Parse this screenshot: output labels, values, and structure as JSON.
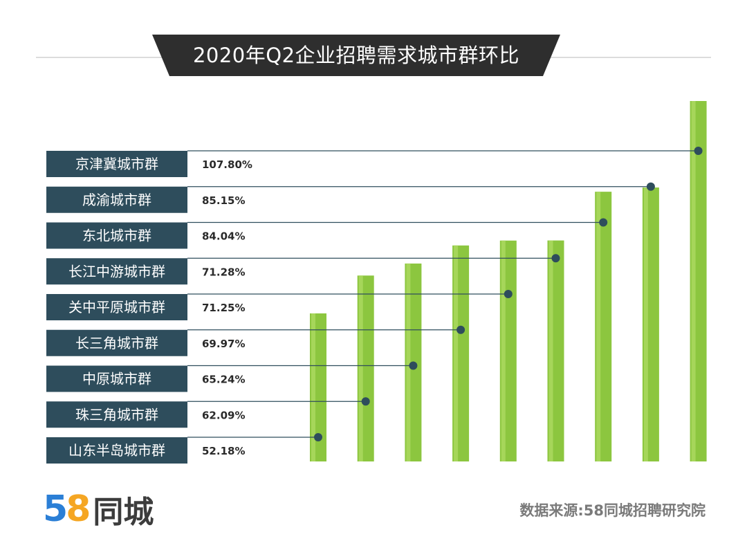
{
  "title": "2020年Q2企业招聘需求城市群环比",
  "source": "数据来源:58同城招聘研究院",
  "logo": {
    "digit_a": "5",
    "digit_b": "8",
    "name": "同城"
  },
  "colors": {
    "label_bg": "#2e4d5c",
    "bar": "#8cc63f",
    "bar_highlight": "#a6d65a",
    "line": "#2e4d5c",
    "banner": "#2e2e2e"
  },
  "chart_data": {
    "type": "bar",
    "title": "2020年Q2企业招聘需求城市群环比",
    "categories": [
      "京津冀城市群",
      "成渝城市群",
      "东北城市群",
      "长江中游城市群",
      "关中平原城市群",
      "长三角城市群",
      "中原城市群",
      "珠三角城市群",
      "山东半岛城市群"
    ],
    "values": [
      107.8,
      85.15,
      84.04,
      71.28,
      71.25,
      69.97,
      65.24,
      62.09,
      52.18
    ],
    "value_labels": [
      "107.80%",
      "85.15%",
      "84.04%",
      "71.28%",
      "71.25%",
      "69.97%",
      "65.24%",
      "62.09%",
      "52.18%"
    ],
    "unit": "%",
    "bars_order_left_to_right": [
      "山东半岛城市群",
      "珠三角城市群",
      "中原城市群",
      "长三角城市群",
      "关中平原城市群",
      "长江中游城市群",
      "东北城市群",
      "成渝城市群",
      "京津冀城市群"
    ],
    "axes_visible": false,
    "grid": false
  }
}
